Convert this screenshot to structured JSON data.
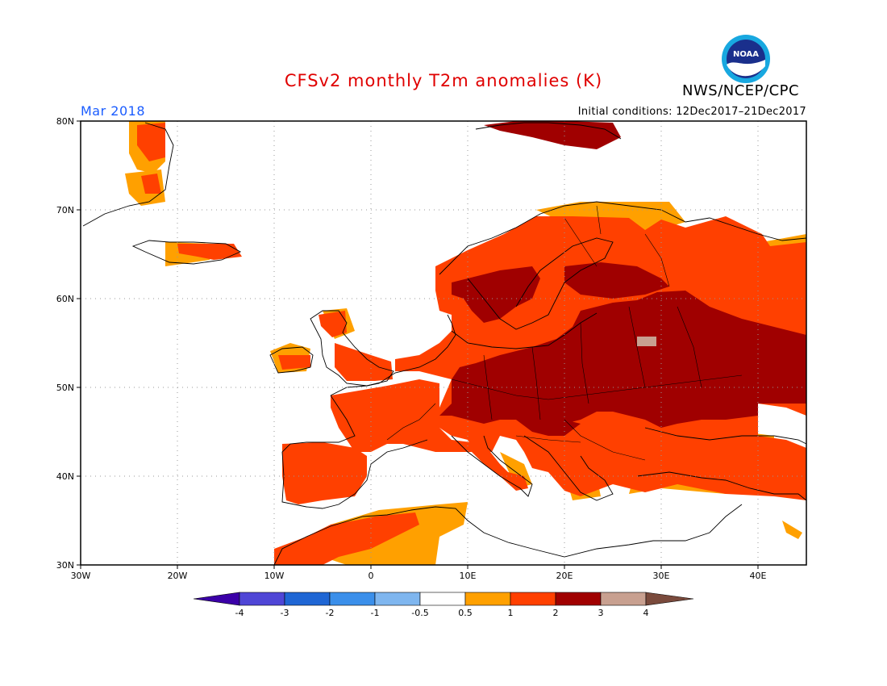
{
  "header": {
    "title": "CFSv2 monthly T2m anomalies (K)",
    "agency": "NWS/NCEP/CPC",
    "logo_text": "NOAA",
    "month": "Mar 2018",
    "initial_conditions": "Initial conditions: 12Dec2017–21Dec2017"
  },
  "map": {
    "lon_labels": [
      "30W",
      "20W",
      "10W",
      "0",
      "10E",
      "20E",
      "30E",
      "40E"
    ],
    "lat_labels": [
      "30N",
      "40N",
      "50N",
      "60N",
      "70N",
      "80N"
    ],
    "lon_range": [
      -30,
      45
    ],
    "lat_range": [
      30,
      80
    ]
  },
  "legend": {
    "labels": [
      "-4",
      "-3",
      "-2",
      "-1",
      "-0.5",
      "0.5",
      "1",
      "2",
      "3",
      "4"
    ],
    "colors": [
      "#3b00a8",
      "#4f46d6",
      "#1f66d4",
      "#3b8fea",
      "#7fb6ef",
      "#ffffff",
      "#ffa000",
      "#ff4000",
      "#a00000",
      "#c8a090",
      "#7a4a3c"
    ]
  },
  "colors": {
    "c1": "#ffa000",
    "c2": "#ff4000",
    "c3": "#a00000",
    "c4": "#c8a090",
    "title": "#e00000",
    "month": "#1a5cff"
  }
}
